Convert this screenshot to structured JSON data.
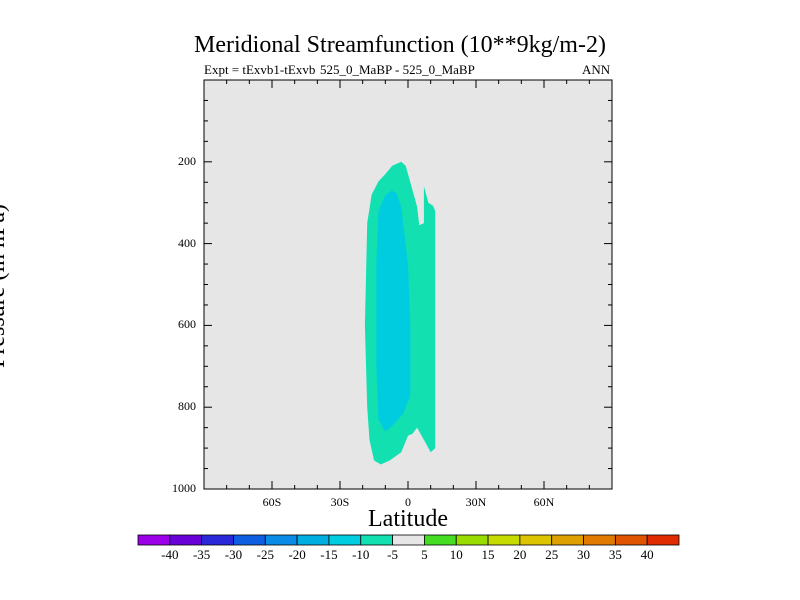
{
  "chart_data": {
    "type": "contour",
    "title": "Meridional Streamfunction (10**9kg/m-2)",
    "subtitle_left": "Expt = tExvb1-tExvb",
    "subtitle_center": "525_0_MaBP - 525_0_MaBP",
    "subtitle_right": "ANN",
    "xlabel": "Latitude",
    "ylabel": "Pressure (in hPa)",
    "xlim": [
      -90,
      90
    ],
    "ylim": [
      1000,
      0
    ],
    "xticks": [
      {
        "value": -60,
        "label": "60S"
      },
      {
        "value": -30,
        "label": "30S"
      },
      {
        "value": 0,
        "label": "0"
      },
      {
        "value": 30,
        "label": "30N"
      },
      {
        "value": 60,
        "label": "60N"
      }
    ],
    "yticks": [
      {
        "value": 200,
        "label": "200"
      },
      {
        "value": 400,
        "label": "400"
      },
      {
        "value": 600,
        "label": "600"
      },
      {
        "value": 800,
        "label": "800"
      },
      {
        "value": 1000,
        "label": "1000"
      }
    ],
    "missing_color": "#e6e6e6",
    "regions": [
      {
        "name": "level-minus-5-to-0",
        "color": "#12e0b0",
        "points": [
          [
            -18,
            350
          ],
          [
            -16,
            280
          ],
          [
            -13,
            248
          ],
          [
            -10,
            230
          ],
          [
            -7,
            210
          ],
          [
            -3,
            200
          ],
          [
            -1,
            210
          ],
          [
            1,
            250
          ],
          [
            4,
            310
          ],
          [
            5,
            355
          ],
          [
            7,
            350
          ],
          [
            7,
            260
          ],
          [
            9,
            300
          ],
          [
            11,
            307
          ],
          [
            12,
            320
          ],
          [
            12,
            900
          ],
          [
            10,
            910
          ],
          [
            7,
            880
          ],
          [
            4,
            850
          ],
          [
            2,
            865
          ],
          [
            0,
            870
          ],
          [
            -3,
            910
          ],
          [
            -8,
            930
          ],
          [
            -12,
            940
          ],
          [
            -15,
            930
          ],
          [
            -17,
            880
          ],
          [
            -18,
            800
          ],
          [
            -19,
            600
          ]
        ]
      },
      {
        "name": "level-minus-10-to-minus-5",
        "color": "#00ccdf",
        "points": [
          [
            -14,
            450
          ],
          [
            -13,
            320
          ],
          [
            -10,
            282
          ],
          [
            -7,
            270
          ],
          [
            -5,
            278
          ],
          [
            -3,
            310
          ],
          [
            -2,
            360
          ],
          [
            0,
            450
          ],
          [
            1,
            600
          ],
          [
            1,
            770
          ],
          [
            -2,
            815
          ],
          [
            -6,
            840
          ],
          [
            -10,
            860
          ],
          [
            -13,
            830
          ],
          [
            -14,
            700
          ]
        ]
      }
    ],
    "colorbar": {
      "labels": [
        "-40",
        "-35",
        "-30",
        "-25",
        "-20",
        "-15",
        "-10",
        "-5",
        "5",
        "10",
        "15",
        "20",
        "25",
        "30",
        "35",
        "40"
      ],
      "colors": [
        "#9b00e8",
        "#6a00d8",
        "#2a28d8",
        "#0d5ee0",
        "#0a8be5",
        "#00aee0",
        "#00cde0",
        "#12e0b0",
        "#e6e6e6",
        "#44dd22",
        "#99dd00",
        "#c6dc00",
        "#dcc400",
        "#dda000",
        "#e07a00",
        "#e05400",
        "#e02a00"
      ]
    }
  }
}
